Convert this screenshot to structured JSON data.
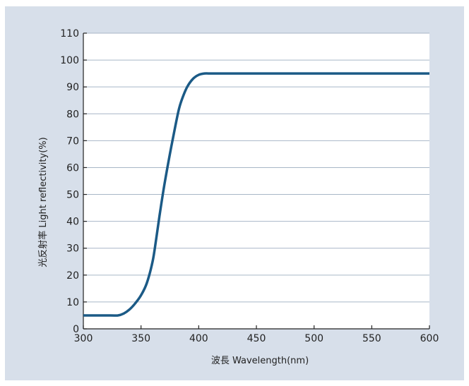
{
  "chart_data": {
    "type": "line",
    "xlabel": "波長 Wavelength(nm)",
    "ylabel": "光反射率 Light reflectivity(%)",
    "xlim": [
      300,
      600
    ],
    "ylim": [
      0,
      110
    ],
    "x_ticks": [
      300,
      350,
      400,
      450,
      500,
      550,
      600
    ],
    "y_ticks": [
      0,
      10,
      20,
      30,
      40,
      50,
      60,
      70,
      80,
      90,
      100,
      110
    ],
    "grid": true,
    "line_color": "#1b5a86",
    "series": [
      {
        "x": [
          300,
          310,
          320,
          330,
          335,
          340,
          345,
          350,
          355,
          360,
          363,
          366,
          370,
          375,
          380,
          383,
          386,
          390,
          395,
          400,
          405,
          410,
          415,
          420,
          450,
          500,
          550,
          600
        ],
        "y": [
          5,
          5,
          5,
          5,
          5.7,
          7.2,
          9.5,
          12.5,
          17,
          25,
          33,
          42,
          53,
          65,
          76,
          82,
          86,
          90,
          93,
          94.5,
          95,
          95,
          95,
          95,
          95,
          95,
          95,
          95
        ]
      }
    ]
  },
  "colors": {
    "panel_background": "#d7dfea",
    "plot_background": "#ffffff",
    "grid": "#a8b6c7",
    "line": "#1b5a86"
  }
}
